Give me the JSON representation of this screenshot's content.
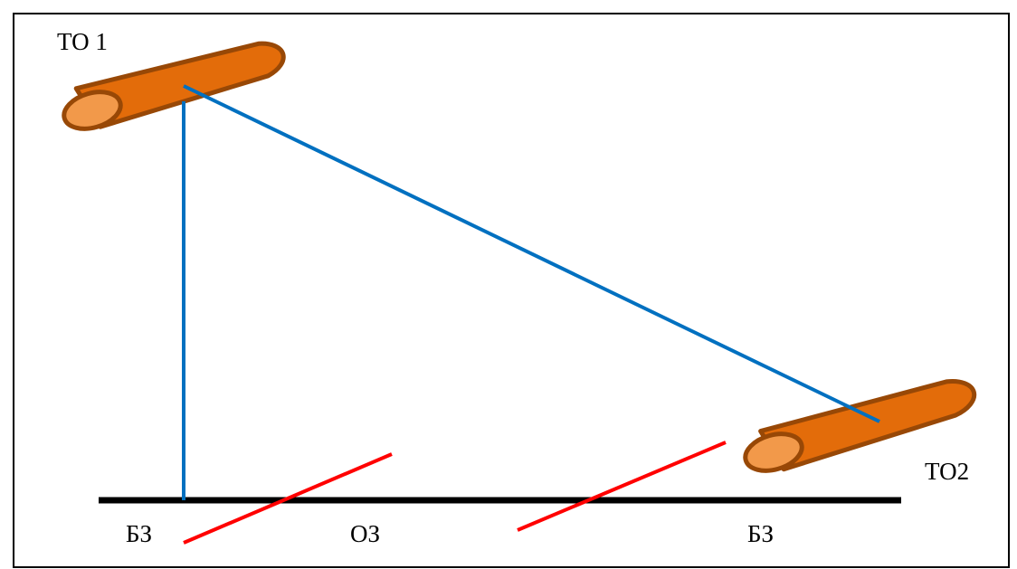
{
  "labels": {
    "tube_top": "ТО 1",
    "tube_bottom": "ТО2",
    "zone_left": "БЗ",
    "zone_middle": "ОЗ",
    "zone_right": "БЗ"
  },
  "colors": {
    "frame": "#000000",
    "tube_fill": "#e36c0a",
    "tube_stroke": "#984806",
    "tube_end": "#f2994a",
    "beam": "#0070c0",
    "boundary": "#ff0000",
    "ground": "#000000"
  }
}
